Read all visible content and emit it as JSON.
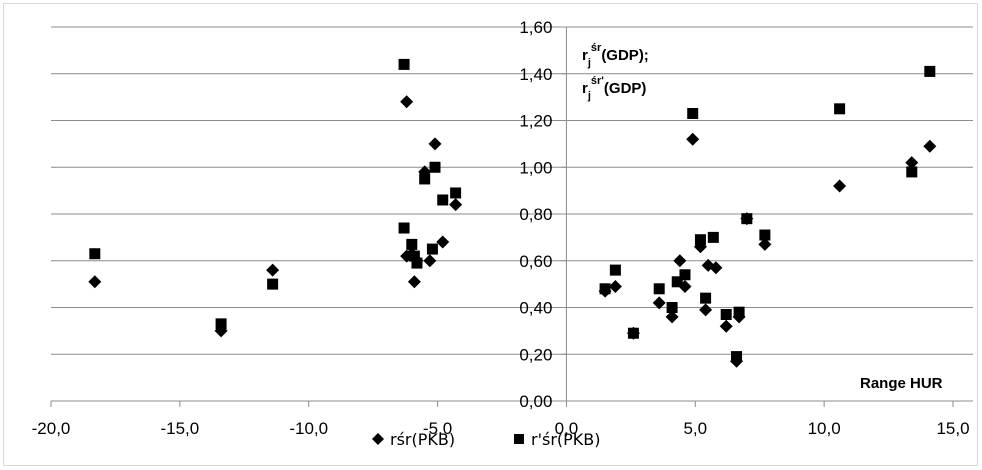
{
  "chart_data": {
    "type": "scatter",
    "xlim": [
      -20,
      15
    ],
    "ylim": [
      0,
      1.6
    ],
    "x_ticks": [
      "-20,0",
      "-15,0",
      "-10,0",
      "-5,0",
      "0,0",
      "5,0",
      "10,0",
      "15,0"
    ],
    "y_ticks": [
      "0,00",
      "0,20",
      "0,40",
      "0,60",
      "0,80",
      "1,00",
      "1,20",
      "1,40",
      "1,60"
    ],
    "grid": true,
    "legend_position": "bottom",
    "y_title": {
      "line1_base": "r",
      "line1_sub": "j",
      "line1_sup": "śr",
      "line1_rest": "(GDP);",
      "line2_base": "r",
      "line2_sub": "j",
      "line2_sup": "śr'",
      "line2_rest": "(GDP)"
    },
    "x_title": "Range HUR",
    "series": [
      {
        "name": "rśr(PKB)",
        "marker": "diamond",
        "color": "#000000",
        "points": [
          [
            -18.3,
            0.51
          ],
          [
            -13.4,
            0.3
          ],
          [
            -11.4,
            0.56
          ],
          [
            -6.2,
            1.28
          ],
          [
            -6.2,
            0.62
          ],
          [
            -6.0,
            0.63
          ],
          [
            -5.9,
            0.51
          ],
          [
            -5.8,
            0.6
          ],
          [
            -5.5,
            0.98
          ],
          [
            -5.3,
            0.6
          ],
          [
            -5.1,
            1.1
          ],
          [
            -4.8,
            0.68
          ],
          [
            -4.3,
            0.84
          ],
          [
            1.5,
            0.47
          ],
          [
            1.9,
            0.49
          ],
          [
            2.6,
            0.29
          ],
          [
            3.6,
            0.42
          ],
          [
            4.1,
            0.36
          ],
          [
            4.4,
            0.6
          ],
          [
            4.6,
            0.49
          ],
          [
            4.9,
            1.12
          ],
          [
            5.2,
            0.66
          ],
          [
            5.4,
            0.39
          ],
          [
            5.5,
            0.58
          ],
          [
            5.8,
            0.57
          ],
          [
            6.2,
            0.32
          ],
          [
            6.6,
            0.17
          ],
          [
            6.7,
            0.36
          ],
          [
            7.0,
            0.78
          ],
          [
            7.7,
            0.67
          ],
          [
            10.6,
            0.92
          ],
          [
            13.4,
            1.02
          ],
          [
            14.1,
            1.09
          ]
        ]
      },
      {
        "name": "r'śr(PKB)",
        "marker": "square",
        "color": "#000000",
        "points": [
          [
            -18.3,
            0.63
          ],
          [
            -13.4,
            0.33
          ],
          [
            -11.4,
            0.5
          ],
          [
            -6.3,
            1.44
          ],
          [
            -6.3,
            0.74
          ],
          [
            -6.0,
            0.67
          ],
          [
            -5.9,
            0.62
          ],
          [
            -5.8,
            0.59
          ],
          [
            -5.5,
            0.95
          ],
          [
            -5.2,
            0.65
          ],
          [
            -5.1,
            1.0
          ],
          [
            -4.8,
            0.86
          ],
          [
            -4.3,
            0.89
          ],
          [
            1.5,
            0.48
          ],
          [
            1.9,
            0.56
          ],
          [
            2.6,
            0.29
          ],
          [
            3.6,
            0.48
          ],
          [
            4.1,
            0.4
          ],
          [
            4.3,
            0.51
          ],
          [
            4.6,
            0.54
          ],
          [
            4.9,
            1.23
          ],
          [
            5.2,
            0.69
          ],
          [
            5.4,
            0.44
          ],
          [
            5.7,
            0.7
          ],
          [
            6.2,
            0.37
          ],
          [
            6.6,
            0.19
          ],
          [
            6.7,
            0.38
          ],
          [
            7.0,
            0.78
          ],
          [
            7.7,
            0.71
          ],
          [
            10.6,
            1.25
          ],
          [
            13.4,
            0.98
          ],
          [
            14.1,
            1.41
          ]
        ]
      }
    ]
  }
}
